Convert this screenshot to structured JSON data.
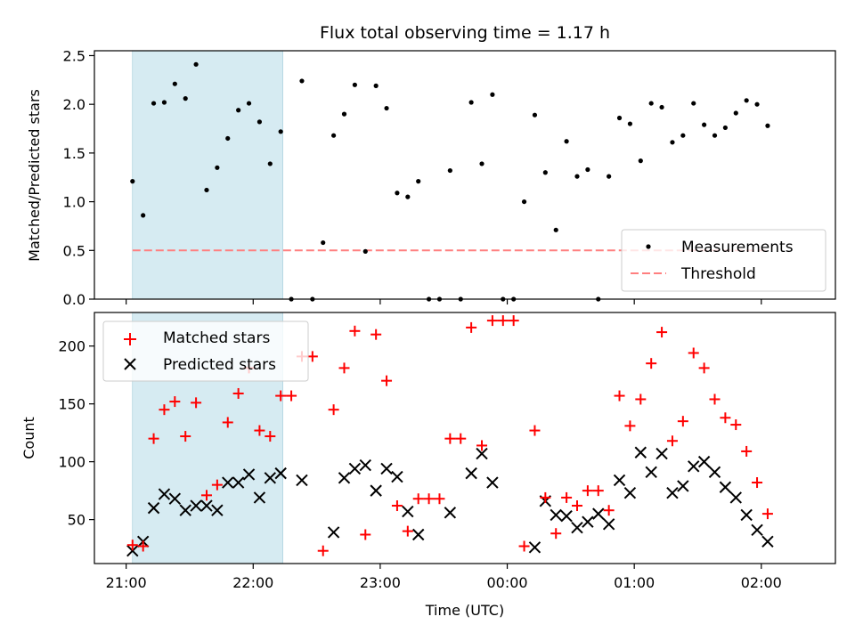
{
  "chart_data": [
    {
      "type": "scatter",
      "title": "Flux total observing time = 1.17 h",
      "ylabel": "Matched/Predicted stars",
      "xlabel": "",
      "ylim": [
        0,
        2.55
      ],
      "x_range_minutes": [
        -15,
        335
      ],
      "yticks": [
        0.0,
        0.5,
        1.0,
        1.5,
        2.0,
        2.5
      ],
      "ytick_labels": [
        "0.0",
        "0.5",
        "1.0",
        "1.5",
        "2.0",
        "2.5"
      ],
      "shaded_interval": [
        "21:03",
        "22:14"
      ],
      "threshold": 0.5,
      "legend": {
        "position": "lower-right",
        "entries": [
          "Measurements",
          "Threshold"
        ]
      },
      "series": [
        {
          "name": "Measurements",
          "color": "#000000",
          "x": [
            "21:03",
            "21:08",
            "21:13",
            "21:18",
            "21:23",
            "21:28",
            "21:33",
            "21:38",
            "21:43",
            "21:48",
            "21:53",
            "21:58",
            "22:03",
            "22:08",
            "22:13",
            "22:18",
            "22:23",
            "22:28",
            "22:33",
            "22:38",
            "22:43",
            "22:48",
            "22:53",
            "22:58",
            "23:03",
            "23:08",
            "23:13",
            "23:18",
            "23:23",
            "23:28",
            "23:33",
            "23:38",
            "23:43",
            "23:48",
            "23:53",
            "23:58",
            "00:03",
            "00:08",
            "00:13",
            "00:18",
            "00:23",
            "00:28",
            "00:33",
            "00:38",
            "00:43",
            "00:48",
            "00:53",
            "00:58",
            "01:03",
            "01:08",
            "01:13",
            "01:18",
            "01:23",
            "01:28",
            "01:33",
            "01:38",
            "01:43",
            "01:48",
            "01:53",
            "01:58",
            "02:03"
          ],
          "values": [
            1.21,
            0.86,
            2.01,
            2.02,
            2.21,
            2.06,
            2.41,
            1.12,
            1.35,
            1.65,
            1.94,
            2.01,
            1.82,
            1.39,
            1.72,
            0.0,
            2.24,
            0.0,
            0.58,
            1.68,
            1.9,
            2.2,
            0.49,
            2.19,
            1.96,
            1.09,
            1.05,
            1.21,
            0.0,
            0.0,
            1.32,
            0.0,
            2.02,
            1.39,
            2.1,
            0.0,
            0.0,
            1.0,
            1.89,
            1.3,
            0.71,
            1.62,
            1.26,
            1.33,
            0.0,
            1.26,
            1.86,
            1.8,
            1.42,
            2.01,
            1.97,
            1.61,
            1.68,
            2.01,
            1.79,
            1.68,
            1.76,
            1.91,
            2.04,
            2.0,
            1.78
          ]
        },
        {
          "name": "Threshold",
          "color": "#ff7f7f",
          "style": "dashed",
          "value": 0.5
        }
      ]
    },
    {
      "type": "scatter",
      "title": "",
      "ylabel": "Count",
      "xlabel": "Time (UTC)",
      "ylim": [
        12,
        229
      ],
      "x_range_minutes": [
        -15,
        335
      ],
      "xticks": [
        "21:00",
        "22:00",
        "23:00",
        "00:00",
        "01:00",
        "02:00"
      ],
      "xtick_minutes": [
        0,
        60,
        120,
        180,
        240,
        300
      ],
      "yticks": [
        50,
        100,
        150,
        200
      ],
      "ytick_labels": [
        "50",
        "100",
        "150",
        "200"
      ],
      "shaded_interval": [
        "21:03",
        "22:14"
      ],
      "legend": {
        "position": "upper-left",
        "entries": [
          "Matched stars",
          "Predicted stars"
        ]
      },
      "series": [
        {
          "name": "Matched stars",
          "color": "#ff0000",
          "marker": "+",
          "x": [
            "21:03",
            "21:08",
            "21:13",
            "21:18",
            "21:23",
            "21:28",
            "21:33",
            "21:38",
            "21:43",
            "21:48",
            "21:53",
            "21:58",
            "22:03",
            "22:08",
            "22:13",
            "22:18",
            "22:23",
            "22:28",
            "22:33",
            "22:38",
            "22:43",
            "22:48",
            "22:53",
            "22:58",
            "23:03",
            "23:08",
            "23:13",
            "23:18",
            "23:23",
            "23:28",
            "23:33",
            "23:38",
            "23:43",
            "23:48",
            "23:53",
            "23:58",
            "00:03",
            "00:08",
            "00:13",
            "00:18",
            "00:23",
            "00:28",
            "00:33",
            "00:38",
            "00:43",
            "00:48",
            "00:53",
            "00:58",
            "01:03",
            "01:08",
            "01:13",
            "01:18",
            "01:23",
            "01:28",
            "01:33",
            "01:38",
            "01:43",
            "01:48",
            "01:53",
            "01:58",
            "02:03"
          ],
          "values": [
            28,
            27,
            120,
            145,
            152,
            122,
            151,
            71,
            80,
            134,
            159,
            181,
            127,
            122,
            157,
            157,
            191,
            191,
            23,
            145,
            181,
            213,
            37,
            210,
            170,
            62,
            40,
            68,
            68,
            68,
            120,
            120,
            216,
            114,
            222,
            222,
            222,
            27,
            127,
            69,
            38,
            69,
            62,
            75,
            75,
            58,
            157,
            131,
            154,
            185,
            212,
            118,
            135,
            194,
            181,
            154,
            138,
            132,
            109,
            82,
            55
          ]
        },
        {
          "name": "Predicted stars",
          "color": "#000000",
          "marker": "x",
          "x": [
            "21:03",
            "21:08",
            "21:13",
            "21:18",
            "21:23",
            "21:28",
            "21:33",
            "21:38",
            "21:43",
            "21:48",
            "21:53",
            "21:58",
            "22:03",
            "22:08",
            "22:13",
            "22:23",
            "22:38",
            "22:43",
            "22:48",
            "22:53",
            "22:58",
            "23:03",
            "23:08",
            "23:13",
            "23:18",
            "23:33",
            "23:43",
            "23:48",
            "23:53",
            "00:13",
            "00:18",
            "00:23",
            "00:28",
            "00:33",
            "00:38",
            "00:43",
            "00:48",
            "00:53",
            "00:58",
            "01:03",
            "01:08",
            "01:13",
            "01:18",
            "01:23",
            "01:28",
            "01:33",
            "01:38",
            "01:43",
            "01:48",
            "01:53",
            "01:58",
            "02:03"
          ],
          "values": [
            23,
            31,
            60,
            72,
            68,
            58,
            62,
            62,
            58,
            82,
            82,
            89,
            69,
            86,
            90,
            84,
            39,
            86,
            94,
            97,
            75,
            94,
            87,
            57,
            37,
            56,
            90,
            107,
            82,
            26,
            66,
            54,
            53,
            43,
            48,
            55,
            46,
            84,
            73,
            108,
            91,
            107,
            73,
            79,
            96,
            100,
            91,
            78,
            69,
            54,
            41,
            31
          ]
        }
      ]
    }
  ]
}
